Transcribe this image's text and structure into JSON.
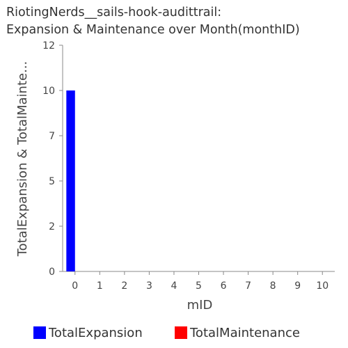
{
  "chart_data": {
    "type": "bar",
    "title_lines": [
      "RiotingNerds__sails-hook-audittrail:",
      "Expansion & Maintenance over Month(monthID)"
    ],
    "xlabel": "mID",
    "ylabel": "TotalExpansion & TotalMainte...",
    "categories": [
      "0",
      "1",
      "2",
      "3",
      "4",
      "5",
      "6",
      "7",
      "8",
      "9",
      "10"
    ],
    "y_ticks": [
      "0",
      "2",
      "5",
      "7",
      "10",
      "12"
    ],
    "y_tick_values": [
      0,
      2.5,
      5,
      7.5,
      10,
      12.5
    ],
    "ylim": [
      0,
      12.5
    ],
    "grid": false,
    "legend_position": "bottom",
    "series": [
      {
        "name": "TotalExpansion",
        "color": "#0000ff",
        "values": [
          10,
          0,
          0,
          0,
          0,
          0,
          0,
          0,
          0,
          0,
          0
        ]
      },
      {
        "name": "TotalMaintenance",
        "color": "#ff0000",
        "values": [
          0,
          0,
          0,
          0,
          0,
          0,
          0,
          0,
          0,
          0,
          0
        ]
      }
    ]
  }
}
